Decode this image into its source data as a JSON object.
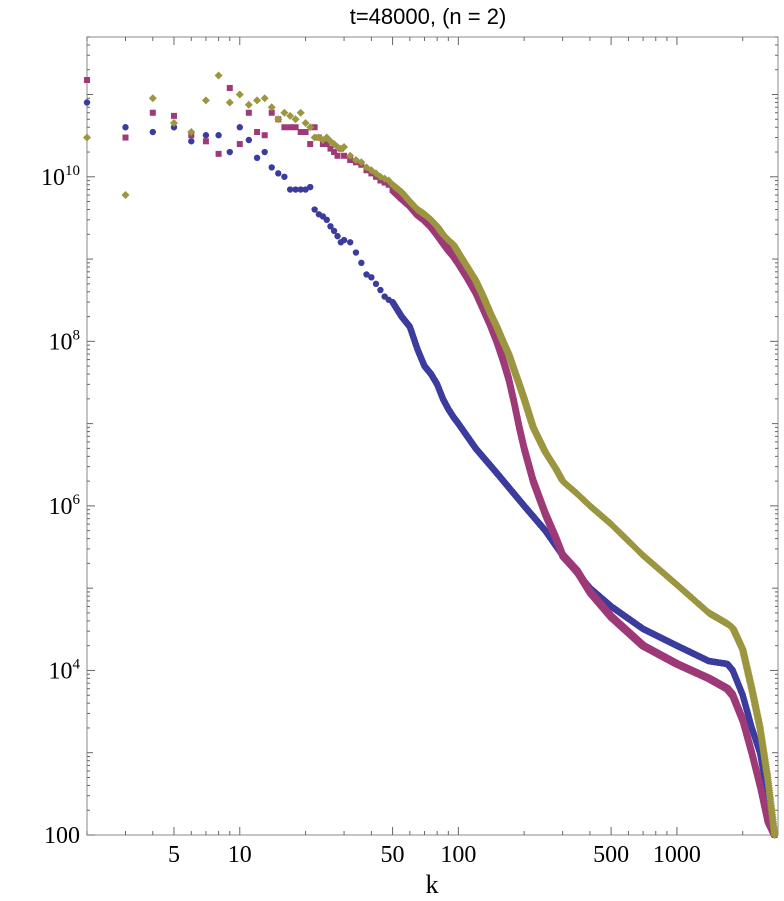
{
  "chart_data": {
    "type": "scatter",
    "title": "t=48000, (n = 2)",
    "xlabel": "k",
    "ylabel": "",
    "x_scale": "log",
    "y_scale": "log",
    "xlim": [
      2,
      2900
    ],
    "ylim": [
      100,
      500000000000
    ],
    "x_ticks": [
      {
        "value": 5,
        "label": "5"
      },
      {
        "value": 10,
        "label": "10"
      },
      {
        "value": 50,
        "label": "50"
      },
      {
        "value": 100,
        "label": "100"
      },
      {
        "value": 500,
        "label": "500"
      },
      {
        "value": 1000,
        "label": "1000"
      }
    ],
    "y_ticks": [
      {
        "value": 100,
        "base": "100",
        "exp": ""
      },
      {
        "value": 10000,
        "base": "10",
        "exp": "4"
      },
      {
        "value": 1000000,
        "base": "10",
        "exp": "6"
      },
      {
        "value": 100000000,
        "base": "10",
        "exp": "8"
      },
      {
        "value": 10000000000,
        "base": "10",
        "exp": "10"
      }
    ],
    "grid": false,
    "series": [
      {
        "color": "#3b3d9e",
        "marker": "circle",
        "x": [
          2,
          3,
          4,
          5,
          6,
          7,
          8,
          9,
          10,
          11,
          12,
          13,
          14,
          15,
          16,
          17,
          18,
          19,
          20,
          21,
          22,
          23,
          24,
          25,
          26,
          27,
          28,
          29,
          30,
          32,
          34,
          36,
          38,
          40,
          42,
          44,
          46,
          48,
          50,
          55,
          60,
          65,
          70,
          75,
          80,
          85,
          90,
          95,
          100,
          120,
          150,
          200,
          250,
          300,
          400,
          500,
          700,
          1000,
          1400,
          1700,
          1800,
          2000,
          2200,
          2400,
          2600,
          2800
        ],
        "y": [
          80000000000.0,
          40000000000.0,
          35000000000.0,
          40000000000.0,
          27000000000.0,
          32000000000.0,
          32000000000.0,
          20000000000.0,
          40000000000.0,
          28000000000.0,
          17000000000.0,
          20000000000.0,
          13000000000.0,
          11000000000.0,
          10000000000.0,
          7000000000.0,
          7000000000.0,
          7000000000.0,
          7000000000.0,
          7500000000.0,
          4000000000.0,
          3500000000.0,
          3300000000.0,
          3000000000.0,
          2500000000.0,
          2200000000.0,
          1900000000.0,
          1600000000.0,
          1700000000.0,
          1600000000.0,
          1200000000.0,
          900000000.0,
          650000000.0,
          600000000.0,
          500000000.0,
          420000000.0,
          350000000.0,
          320000000.0,
          300000000.0,
          200000000.0,
          150000000.0,
          80000000.0,
          50000000.0,
          40000000.0,
          30000000.0,
          20000000.0,
          15000000.0,
          12000000.0,
          10000000.0,
          5000000.0,
          2500000.0,
          1000000.0,
          500000.0,
          250000.0,
          100000.0,
          60000.0,
          32000.0,
          20000.0,
          13000.0,
          12000.0,
          10000.0,
          5000.0,
          2000.0,
          1000.0,
          300,
          100
        ]
      },
      {
        "color": "#9e3a78",
        "marker": "square",
        "x": [
          2,
          3,
          4,
          5,
          6,
          7,
          8,
          9,
          10,
          11,
          12,
          13,
          14,
          15,
          16,
          17,
          18,
          19,
          20,
          21,
          22,
          23,
          24,
          25,
          26,
          27,
          28,
          29,
          30,
          32,
          34,
          36,
          38,
          40,
          42,
          44,
          46,
          48,
          50,
          55,
          60,
          65,
          70,
          75,
          80,
          85,
          90,
          95,
          100,
          110,
          120,
          130,
          140,
          150,
          160,
          170,
          180,
          190,
          200,
          220,
          250,
          280,
          300,
          350,
          400,
          500,
          700,
          1000,
          1400,
          1700,
          1800,
          2000,
          2200,
          2400,
          2600,
          2800
        ],
        "y": [
          150000000000.0,
          30000000000.0,
          60000000000.0,
          55000000000.0,
          32000000000.0,
          27000000000.0,
          19000000000.0,
          120000000000.0,
          25000000000.0,
          60000000000.0,
          35000000000.0,
          32000000000.0,
          60000000000.0,
          50000000000.0,
          40000000000.0,
          40000000000.0,
          40000000000.0,
          35000000000.0,
          35000000000.0,
          25000000000.0,
          40000000000.0,
          30000000000.0,
          25000000000.0,
          25000000000.0,
          22000000000.0,
          20000000000.0,
          18000000000.0,
          22000000000.0,
          18000000000.0,
          16000000000.0,
          15000000000.0,
          14000000000.0,
          12000000000.0,
          11000000000.0,
          10000000000.0,
          9000000000.0,
          8500000000.0,
          8000000000.0,
          7000000000.0,
          5500000000.0,
          4500000000.0,
          3500000000.0,
          3000000000.0,
          2500000000.0,
          2000000000.0,
          1600000000.0,
          1300000000.0,
          1100000000.0,
          900000000.0,
          600000000.0,
          400000000.0,
          250000000.0,
          160000000.0,
          100000000.0,
          60000000.0,
          35000000.0,
          18000000.0,
          9000000.0,
          5000000.0,
          2000000.0,
          800000.0,
          400000.0,
          250000.0,
          160000.0,
          90000.0,
          45000.0,
          20000.0,
          12000.0,
          8000.0,
          6000.0,
          5000.0,
          2500.0,
          1000.0,
          400,
          150,
          100
        ]
      },
      {
        "color": "#9c9640",
        "marker": "diamond",
        "x": [
          2,
          3,
          4,
          5,
          6,
          7,
          8,
          9,
          10,
          11,
          12,
          13,
          14,
          15,
          16,
          17,
          18,
          19,
          20,
          21,
          22,
          23,
          24,
          25,
          26,
          27,
          28,
          29,
          30,
          32,
          34,
          36,
          38,
          40,
          42,
          44,
          46,
          48,
          50,
          55,
          60,
          65,
          70,
          75,
          80,
          85,
          90,
          95,
          100,
          110,
          120,
          130,
          140,
          150,
          160,
          170,
          180,
          190,
          200,
          220,
          250,
          280,
          300,
          350,
          400,
          500,
          700,
          1000,
          1400,
          1700,
          1800,
          2000,
          2200,
          2400,
          2600,
          2800
        ],
        "y": [
          30000000000.0,
          6000000000.0,
          90000000000.0,
          45000000000.0,
          35000000000.0,
          85000000000.0,
          170000000000.0,
          80000000000.0,
          100000000000.0,
          75000000000.0,
          85000000000.0,
          90000000000.0,
          70000000000.0,
          50000000000.0,
          60000000000.0,
          55000000000.0,
          50000000000.0,
          60000000000.0,
          45000000000.0,
          40000000000.0,
          30000000000.0,
          30000000000.0,
          28000000000.0,
          30000000000.0,
          27000000000.0,
          25000000000.0,
          23000000000.0,
          22000000000.0,
          23000000000.0,
          18000000000.0,
          16000000000.0,
          15000000000.0,
          13000000000.0,
          12000000000.0,
          11000000000.0,
          10000000000.0,
          9500000000.0,
          9000000000.0,
          8000000000.0,
          6500000000.0,
          5000000000.0,
          4000000000.0,
          3500000000.0,
          3000000000.0,
          2500000000.0,
          2000000000.0,
          1700000000.0,
          1500000000.0,
          1200000000.0,
          800000000.0,
          550000000.0,
          350000000.0,
          220000000.0,
          150000000.0,
          100000000.0,
          70000000.0,
          45000000.0,
          30000000.0,
          20000000.0,
          9000000.0,
          4500000.0,
          2800000.0,
          2000000.0,
          1400000.0,
          1000000.0,
          600000.0,
          250000.0,
          110000.0,
          50000.0,
          37000.0,
          33000.0,
          18000.0,
          6000.0,
          2000.0,
          500,
          100
        ]
      }
    ]
  }
}
